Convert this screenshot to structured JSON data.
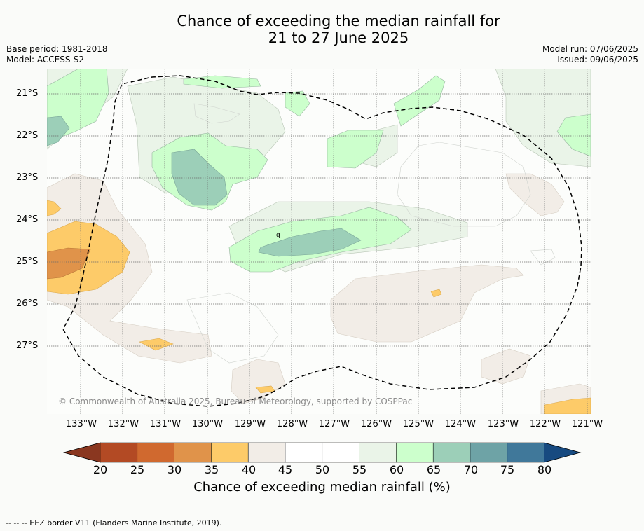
{
  "title": {
    "line1": "Chance of exceeding the median rainfall for",
    "line2": "21 to 27 June 2025"
  },
  "meta_left": {
    "base_period": "Base period: 1981-2018",
    "model": "Model: ACCESS-S2"
  },
  "meta_right": {
    "model_run": "Model run: 07/06/2025",
    "issued": "Issued: 09/06/2025"
  },
  "map": {
    "latitudes": [
      "21°S",
      "22°S",
      "23°S",
      "24°S",
      "25°S",
      "26°S",
      "27°S"
    ],
    "longitudes": [
      "133°W",
      "132°W",
      "131°W",
      "130°W",
      "129°W",
      "128°W",
      "127°W",
      "126°W",
      "125°W",
      "124°W",
      "123°W",
      "122°W",
      "121°W"
    ],
    "copyright": "© Commonwealth of Australia 2025, Bureau of Meteorology, supported by COSPPac",
    "marker": "q"
  },
  "colorbar": {
    "ticks": [
      "20",
      "25",
      "30",
      "35",
      "40",
      "45",
      "50",
      "55",
      "60",
      "65",
      "70",
      "75",
      "80"
    ],
    "colors": [
      "#b34a24",
      "#d0692f",
      "#e0934a",
      "#fdcb69",
      "#f2ede7",
      "#ffffff",
      "#ffffff",
      "#eaf4e8",
      "#ccffcc",
      "#9ccfb8",
      "#6ea3a6",
      "#40789a"
    ],
    "under_color": "#8a3720",
    "over_color": "#174a80",
    "label": "Chance of exceeding median rainfall (%)"
  },
  "footer": "-- -- -- EEZ border V11 (Flanders Marine Institute, 2019)."
}
